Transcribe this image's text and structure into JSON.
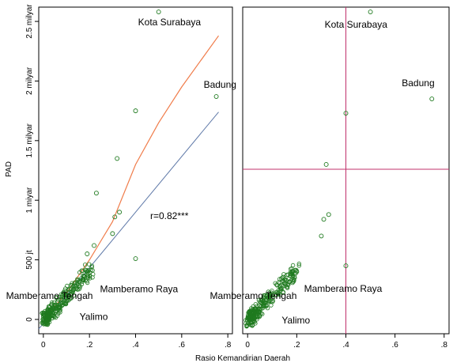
{
  "colors": {
    "point": "#1f7a1f",
    "fit_linear": "#5f79a8",
    "fit_lowess": "#f07c4a",
    "reference_line": "#c0306b",
    "frame": "#000000"
  },
  "chart_data": [
    {
      "type": "scatter",
      "panel": "left",
      "xlabel": "Rasio Kemandirian Daerah",
      "ylabel": "PAD",
      "xlim": [
        -0.02,
        0.82
      ],
      "ylim": [
        -0.12,
        2.62
      ],
      "x_ticks": [
        {
          "value": 0,
          "label": "0"
        },
        {
          "value": 0.2,
          "label": ".2"
        },
        {
          "value": 0.4,
          "label": ".4"
        },
        {
          "value": 0.6,
          "label": ".6"
        },
        {
          "value": 0.8,
          "label": ".8"
        }
      ],
      "y_ticks": [
        {
          "value": 0,
          "label": "0"
        },
        {
          "value": 0.5,
          "label": "500 jt"
        },
        {
          "value": 1.0,
          "label": "1 miyar"
        },
        {
          "value": 1.5,
          "label": "1.5 milyar"
        },
        {
          "value": 2.0,
          "label": "2 milyar"
        },
        {
          "value": 2.5,
          "label": "2.5 milyar"
        }
      ],
      "points_named": [
        {
          "x": 0.5,
          "y": 2.58,
          "label": "Kota Surabaya"
        },
        {
          "x": 0.75,
          "y": 1.87,
          "label": "Badung"
        },
        {
          "x": 0.4,
          "y": 1.75,
          "label": ""
        },
        {
          "x": 0.32,
          "y": 1.35,
          "label": ""
        },
        {
          "x": 0.23,
          "y": 1.06,
          "label": ""
        },
        {
          "x": 0.33,
          "y": 0.9,
          "label": ""
        },
        {
          "x": 0.31,
          "y": 0.86,
          "label": ""
        },
        {
          "x": 0.3,
          "y": 0.72,
          "label": ""
        },
        {
          "x": 0.4,
          "y": 0.51,
          "label": ""
        },
        {
          "x": 0.22,
          "y": 0.62,
          "label": ""
        },
        {
          "x": 0.19,
          "y": 0.55,
          "label": ""
        },
        {
          "x": 0.03,
          "y": 0.08,
          "label": "Mamberamo Tengah"
        },
        {
          "x": 0.04,
          "y": 0.03,
          "label": "Mamberamo Raya"
        },
        {
          "x": 0.02,
          "y": 0.01,
          "label": "Yalimo"
        }
      ],
      "fit_linear": {
        "x": [
          -0.02,
          0.76
        ],
        "y": [
          -0.08,
          1.74
        ]
      },
      "fit_lowess": {
        "x": [
          0.0,
          0.1,
          0.2,
          0.3,
          0.4,
          0.5,
          0.6,
          0.76
        ],
        "y": [
          0.0,
          0.22,
          0.5,
          0.82,
          1.3,
          1.65,
          1.95,
          2.38
        ]
      },
      "annotation": "r=0.82***",
      "cluster_seed": 7
    },
    {
      "type": "scatter",
      "panel": "right",
      "xlim": [
        -0.02,
        0.82
      ],
      "ylim": [
        -0.12,
        2.62
      ],
      "x_ticks": [
        {
          "value": 0,
          "label": "0"
        },
        {
          "value": 0.2,
          "label": ".2"
        },
        {
          "value": 0.4,
          "label": ".4"
        },
        {
          "value": 0.6,
          "label": ".6"
        },
        {
          "value": 0.8,
          "label": ".8"
        }
      ],
      "points_named": [
        {
          "x": 0.5,
          "y": 2.58,
          "label": "Kota Surabaya"
        },
        {
          "x": 0.75,
          "y": 1.85,
          "label": "Badung"
        },
        {
          "x": 0.4,
          "y": 1.73,
          "label": ""
        },
        {
          "x": 0.32,
          "y": 1.3,
          "label": ""
        },
        {
          "x": 0.33,
          "y": 0.88,
          "label": ""
        },
        {
          "x": 0.31,
          "y": 0.84,
          "label": ""
        },
        {
          "x": 0.3,
          "y": 0.7,
          "label": ""
        },
        {
          "x": 0.4,
          "y": 0.45,
          "label": ""
        },
        {
          "x": 0.03,
          "y": 0.08,
          "label": "Mamberamo Tengah"
        },
        {
          "x": 0.04,
          "y": 0.02,
          "label": "Mamberamo Raya"
        },
        {
          "x": 0.02,
          "y": -0.02,
          "label": "Yalimo"
        }
      ],
      "reference_lines": {
        "x": 0.4,
        "y": 1.26
      },
      "cluster_seed": 13
    }
  ]
}
